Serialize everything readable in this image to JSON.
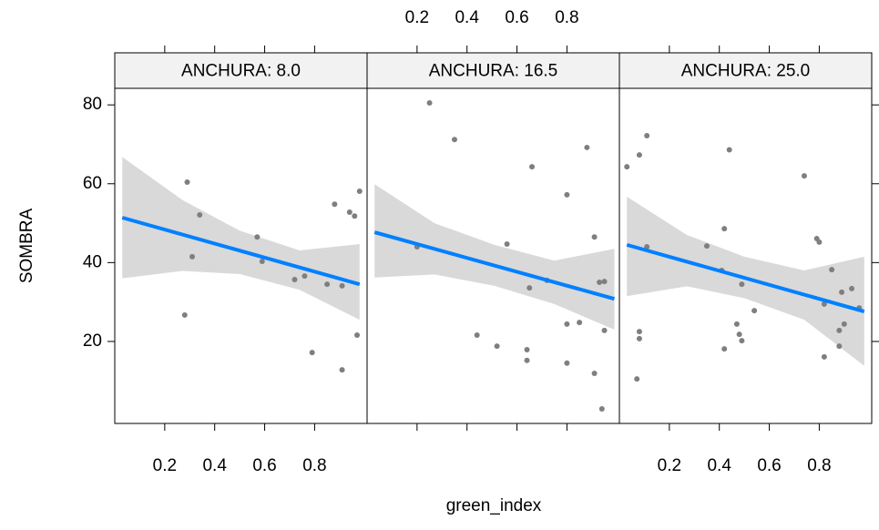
{
  "chart_data": {
    "type": "scatter",
    "xlabel": "green_index",
    "ylabel": "SOMBRA",
    "xlim": [
      0,
      1.01
    ],
    "ylim": [
      -0.8,
      84.2
    ],
    "xticks": [
      0.2,
      0.4,
      0.6,
      0.8
    ],
    "yticks": [
      20,
      40,
      60,
      80
    ],
    "point_color": "#7f7f7f",
    "line_color": "#0080ff",
    "band_color": "#d9d9d9",
    "panels": [
      {
        "title": "ANCHURA: 8.0",
        "x": [
          0.29,
          0.34,
          0.31,
          0.28,
          0.57,
          0.59,
          0.72,
          0.76,
          0.79,
          0.85,
          0.88,
          0.91,
          0.91,
          0.94,
          0.96,
          0.98,
          0.97
        ],
        "values": [
          60.4,
          52.1,
          41.5,
          26.7,
          46.5,
          40.3,
          35.7,
          36.6,
          17.2,
          34.5,
          54.8,
          34.1,
          12.8,
          52.8,
          51.8,
          58.1,
          21.6
        ],
        "fit": {
          "x": [
            0.03,
            0.98
          ],
          "values": [
            51.4,
            34.5
          ]
        },
        "band": {
          "x": [
            0.03,
            0.27,
            0.5,
            0.74,
            0.98
          ],
          "upper": [
            66.8,
            55.9,
            48.1,
            43.1,
            44.7
          ],
          "lower": [
            36,
            37.9,
            37.1,
            33.1,
            25.5
          ]
        }
      },
      {
        "title": "ANCHURA: 16.5",
        "x": [
          0.25,
          0.35,
          0.2,
          0.44,
          0.52,
          0.56,
          0.66,
          0.64,
          0.64,
          0.65,
          0.72,
          0.8,
          0.8,
          0.8,
          0.85,
          0.88,
          0.91,
          0.91,
          0.93,
          0.95,
          0.95,
          0.94
        ],
        "values": [
          80.5,
          71.2,
          44,
          21.6,
          18.8,
          44.7,
          64.3,
          17.9,
          15.2,
          33.6,
          35.5,
          57.2,
          24.4,
          14.5,
          24.8,
          69.2,
          11.9,
          46.5,
          35,
          35.2,
          22.8,
          2.9
        ],
        "fit": {
          "x": [
            0.03,
            0.99
          ],
          "values": [
            47.7,
            30.8
          ]
        },
        "band": {
          "x": [
            0.03,
            0.27,
            0.51,
            0.75,
            0.99
          ],
          "upper": [
            59.9,
            50,
            44.5,
            40.5,
            43.5
          ],
          "lower": [
            36.2,
            37,
            34.1,
            29.5,
            23
          ]
        }
      },
      {
        "title": "ANCHURA: 25.0",
        "x": [
          0.03,
          0.08,
          0.11,
          0.11,
          0.08,
          0.08,
          0.07,
          0.35,
          0.42,
          0.41,
          0.42,
          0.44,
          0.49,
          0.47,
          0.48,
          0.49,
          0.54,
          0.74,
          0.79,
          0.8,
          0.85,
          0.82,
          0.82,
          0.88,
          0.88,
          0.89,
          0.93,
          0.9,
          0.96
        ],
        "values": [
          64.3,
          67.3,
          72.2,
          44,
          22.5,
          20.7,
          10.5,
          44.2,
          48.6,
          38,
          18.1,
          68.6,
          34.5,
          24.4,
          21.8,
          20.2,
          27.8,
          62,
          46.1,
          45.2,
          38.2,
          29.5,
          16.1,
          18.8,
          22.8,
          32.5,
          33.4,
          24.4,
          28.5
        ],
        "fit": {
          "x": [
            0.03,
            0.98
          ],
          "values": [
            44.5,
            27.6
          ]
        },
        "band": {
          "x": [
            0.03,
            0.27,
            0.5,
            0.74,
            0.98
          ],
          "upper": [
            56.7,
            47,
            41.5,
            38,
            41.5
          ],
          "lower": [
            31.5,
            34,
            31,
            25.5,
            13.8
          ]
        }
      }
    ]
  }
}
